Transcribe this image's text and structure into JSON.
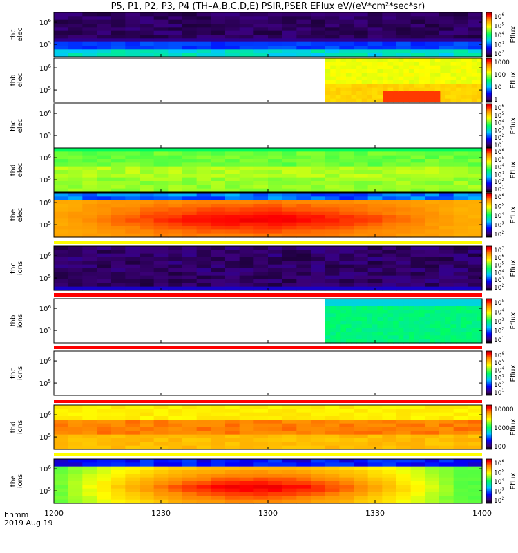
{
  "title": "P5, P1, P2, P3, P4 (TH–A,B,C,D,E) PSIR,PSER EFlux eV/(eV*cm²*sec*sr)",
  "footer": {
    "line1": "hhmm",
    "line2": "2019 Aug 19"
  },
  "chart_data": {
    "type": "heatmap",
    "x_axis": {
      "range": [
        "1200",
        "1400"
      ],
      "ticks": [
        "1200",
        "1230",
        "1300",
        "1330",
        "1400"
      ]
    },
    "panels": [
      {
        "label": [
          "thc",
          "elec"
        ],
        "y_ticks": [
          "10^6",
          "10^5"
        ],
        "colorbar": {
          "title": "Eflux",
          "ticks": [
            "10^6",
            "10^5",
            "10^4",
            "10^3",
            "10^2"
          ]
        },
        "data_start": "1200"
      },
      {
        "label": [
          "thb",
          "elec"
        ],
        "y_ticks": [
          "10^6",
          "10^5"
        ],
        "colorbar": {
          "title": "Eflux",
          "ticks": [
            "1000",
            "100",
            "10",
            "1"
          ]
        },
        "data_start": "1316"
      },
      {
        "label": [
          "thc",
          "elec"
        ],
        "y_ticks": [
          "10^6",
          "10^5"
        ],
        "colorbar": {
          "title": "Eflux",
          "ticks": [
            "10^6",
            "10^5",
            "10^4",
            "10^3",
            "10^2",
            "10^1"
          ]
        },
        "data_start": null
      },
      {
        "label": [
          "thd",
          "elec"
        ],
        "y_ticks": [
          "10^6",
          "10^5"
        ],
        "colorbar": {
          "title": "Eflux",
          "ticks": [
            "10^6",
            "10^5",
            "10^4",
            "10^3",
            "10^2",
            "10^1"
          ]
        },
        "data_start": "1200"
      },
      {
        "label": [
          "the",
          "elec"
        ],
        "y_ticks": [
          "10^6",
          "10^5"
        ],
        "colorbar": {
          "title": "Eflux",
          "ticks": [
            "10^6",
            "10^5",
            "10^4",
            "10^3",
            "10^2"
          ]
        },
        "data_start": "1200"
      },
      {
        "label": [
          "thc",
          "ions"
        ],
        "y_ticks": [
          "10^6",
          "10^5"
        ],
        "colorbar": {
          "title": "Eflux",
          "ticks": [
            "10^7",
            "10^6",
            "10^5",
            "10^4",
            "10^3",
            "10^2"
          ]
        },
        "data_start": "1200"
      },
      {
        "label": [
          "thb",
          "ions"
        ],
        "y_ticks": [
          "10^6",
          "10^5"
        ],
        "colorbar": {
          "title": "Eflux",
          "ticks": [
            "10^5",
            "10^4",
            "10^3",
            "10^2",
            "10^1"
          ]
        },
        "data_start": "1316"
      },
      {
        "label": [
          "thc",
          "ions"
        ],
        "y_ticks": [
          "10^6",
          "10^5"
        ],
        "colorbar": {
          "title": "Eflux",
          "ticks": [
            "10^6",
            "10^5",
            "10^4",
            "10^3",
            "10^2",
            "10^1"
          ]
        },
        "data_start": null
      },
      {
        "label": [
          "thd",
          "ions"
        ],
        "y_ticks": [
          "10^6",
          "10^5"
        ],
        "colorbar": {
          "title": "Eflux",
          "ticks": [
            "10000",
            "1000",
            "100"
          ]
        },
        "data_start": "1200"
      },
      {
        "label": [
          "the",
          "ions"
        ],
        "y_ticks": [
          "10^6",
          "10^5"
        ],
        "colorbar": {
          "title": "Eflux",
          "ticks": [
            "10^6",
            "10^5",
            "10^4",
            "10^3",
            "10^2"
          ]
        },
        "data_start": "1200"
      }
    ]
  }
}
